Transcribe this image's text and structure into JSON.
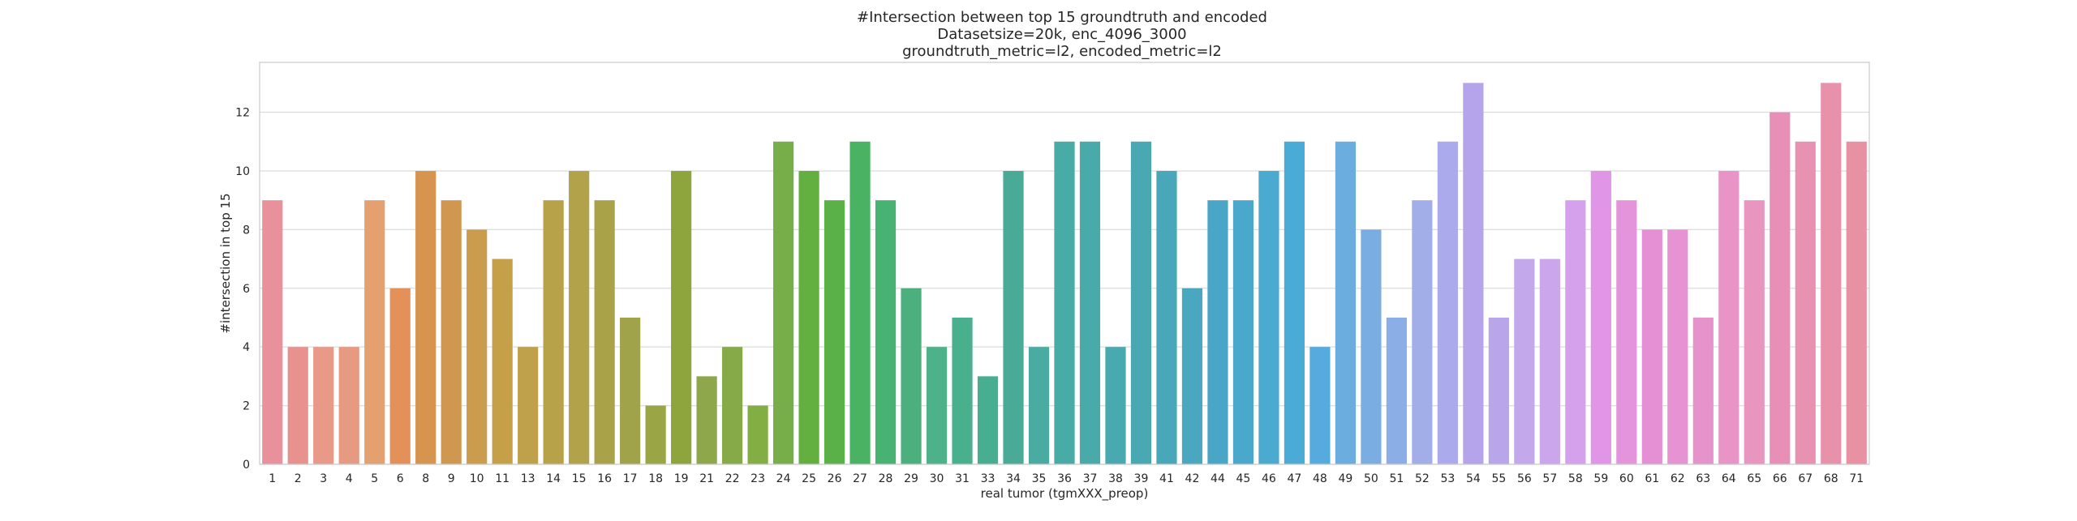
{
  "chart_data": {
    "type": "bar",
    "title_lines": [
      "#Intersection between top 15 groundtruth and encoded",
      "Datasetsize=20k, enc_4096_3000",
      "groundtruth_metric=l2, encoded_metric=l2"
    ],
    "xlabel": "real tumor (tgmXXX_preop)",
    "ylabel": "#intersection in top 15",
    "ylim": [
      0,
      13.7
    ],
    "yticks": [
      0,
      2,
      4,
      6,
      8,
      10,
      12
    ],
    "grid": true,
    "categories": [
      "1",
      "2",
      "3",
      "4",
      "5",
      "6",
      "8",
      "9",
      "10",
      "11",
      "13",
      "14",
      "15",
      "16",
      "17",
      "18",
      "19",
      "21",
      "22",
      "23",
      "24",
      "25",
      "26",
      "27",
      "28",
      "29",
      "30",
      "31",
      "33",
      "34",
      "35",
      "36",
      "37",
      "38",
      "39",
      "41",
      "42",
      "44",
      "45",
      "46",
      "47",
      "48",
      "49",
      "50",
      "51",
      "52",
      "53",
      "54",
      "55",
      "56",
      "57",
      "58",
      "59",
      "60",
      "61",
      "62",
      "63",
      "64",
      "65",
      "66",
      "67",
      "68",
      "71"
    ],
    "values": [
      9,
      4,
      4,
      4,
      9,
      6,
      10,
      9,
      8,
      7,
      4,
      9,
      10,
      9,
      5,
      2,
      10,
      3,
      4,
      2,
      11,
      10,
      9,
      11,
      9,
      6,
      4,
      5,
      3,
      10,
      4,
      11,
      11,
      4,
      11,
      10,
      6,
      9,
      9,
      10,
      11,
      4,
      11,
      8,
      5,
      9,
      11,
      13,
      5,
      7,
      7,
      9,
      10,
      9,
      8,
      8,
      5,
      10,
      9,
      12,
      11,
      13,
      11
    ],
    "colors": [
      "#e8919a",
      "#e8928f",
      "#e89988",
      "#e79a82",
      "#e5a070",
      "#e39159",
      "#d7944e",
      "#d09750",
      "#cb9c4d",
      "#c69f49",
      "#bea14a",
      "#b7a24a",
      "#b2a249",
      "#aaa248",
      "#a1a34a",
      "#9aa546",
      "#8ea53d",
      "#8da74a",
      "#87aa48",
      "#82ae44",
      "#78ae4a",
      "#63b040",
      "#5ab148",
      "#4ab363",
      "#48b272",
      "#4cb07e",
      "#4db189",
      "#48b08c",
      "#47ae92",
      "#49aa98",
      "#4aaba1",
      "#49aba5",
      "#4aaaaa",
      "#49a9b0",
      "#4aa8b3",
      "#48a7b9",
      "#49a7c0",
      "#4aa6c6",
      "#4ba8cd",
      "#4baad0",
      "#4aabd7",
      "#55aade",
      "#6aadde",
      "#7aaee2",
      "#8aaee5",
      "#a1aee8",
      "#aaaaec",
      "#b5a4eb",
      "#b9a5ea",
      "#c3a8ec",
      "#cca6ec",
      "#d5a0ec",
      "#e095e6",
      "#e494db",
      "#e58fd5",
      "#e692d3",
      "#e693cb",
      "#e894c6",
      "#e896bf",
      "#e88fb7",
      "#e892b2",
      "#e891ab",
      "#e891a3"
    ]
  }
}
